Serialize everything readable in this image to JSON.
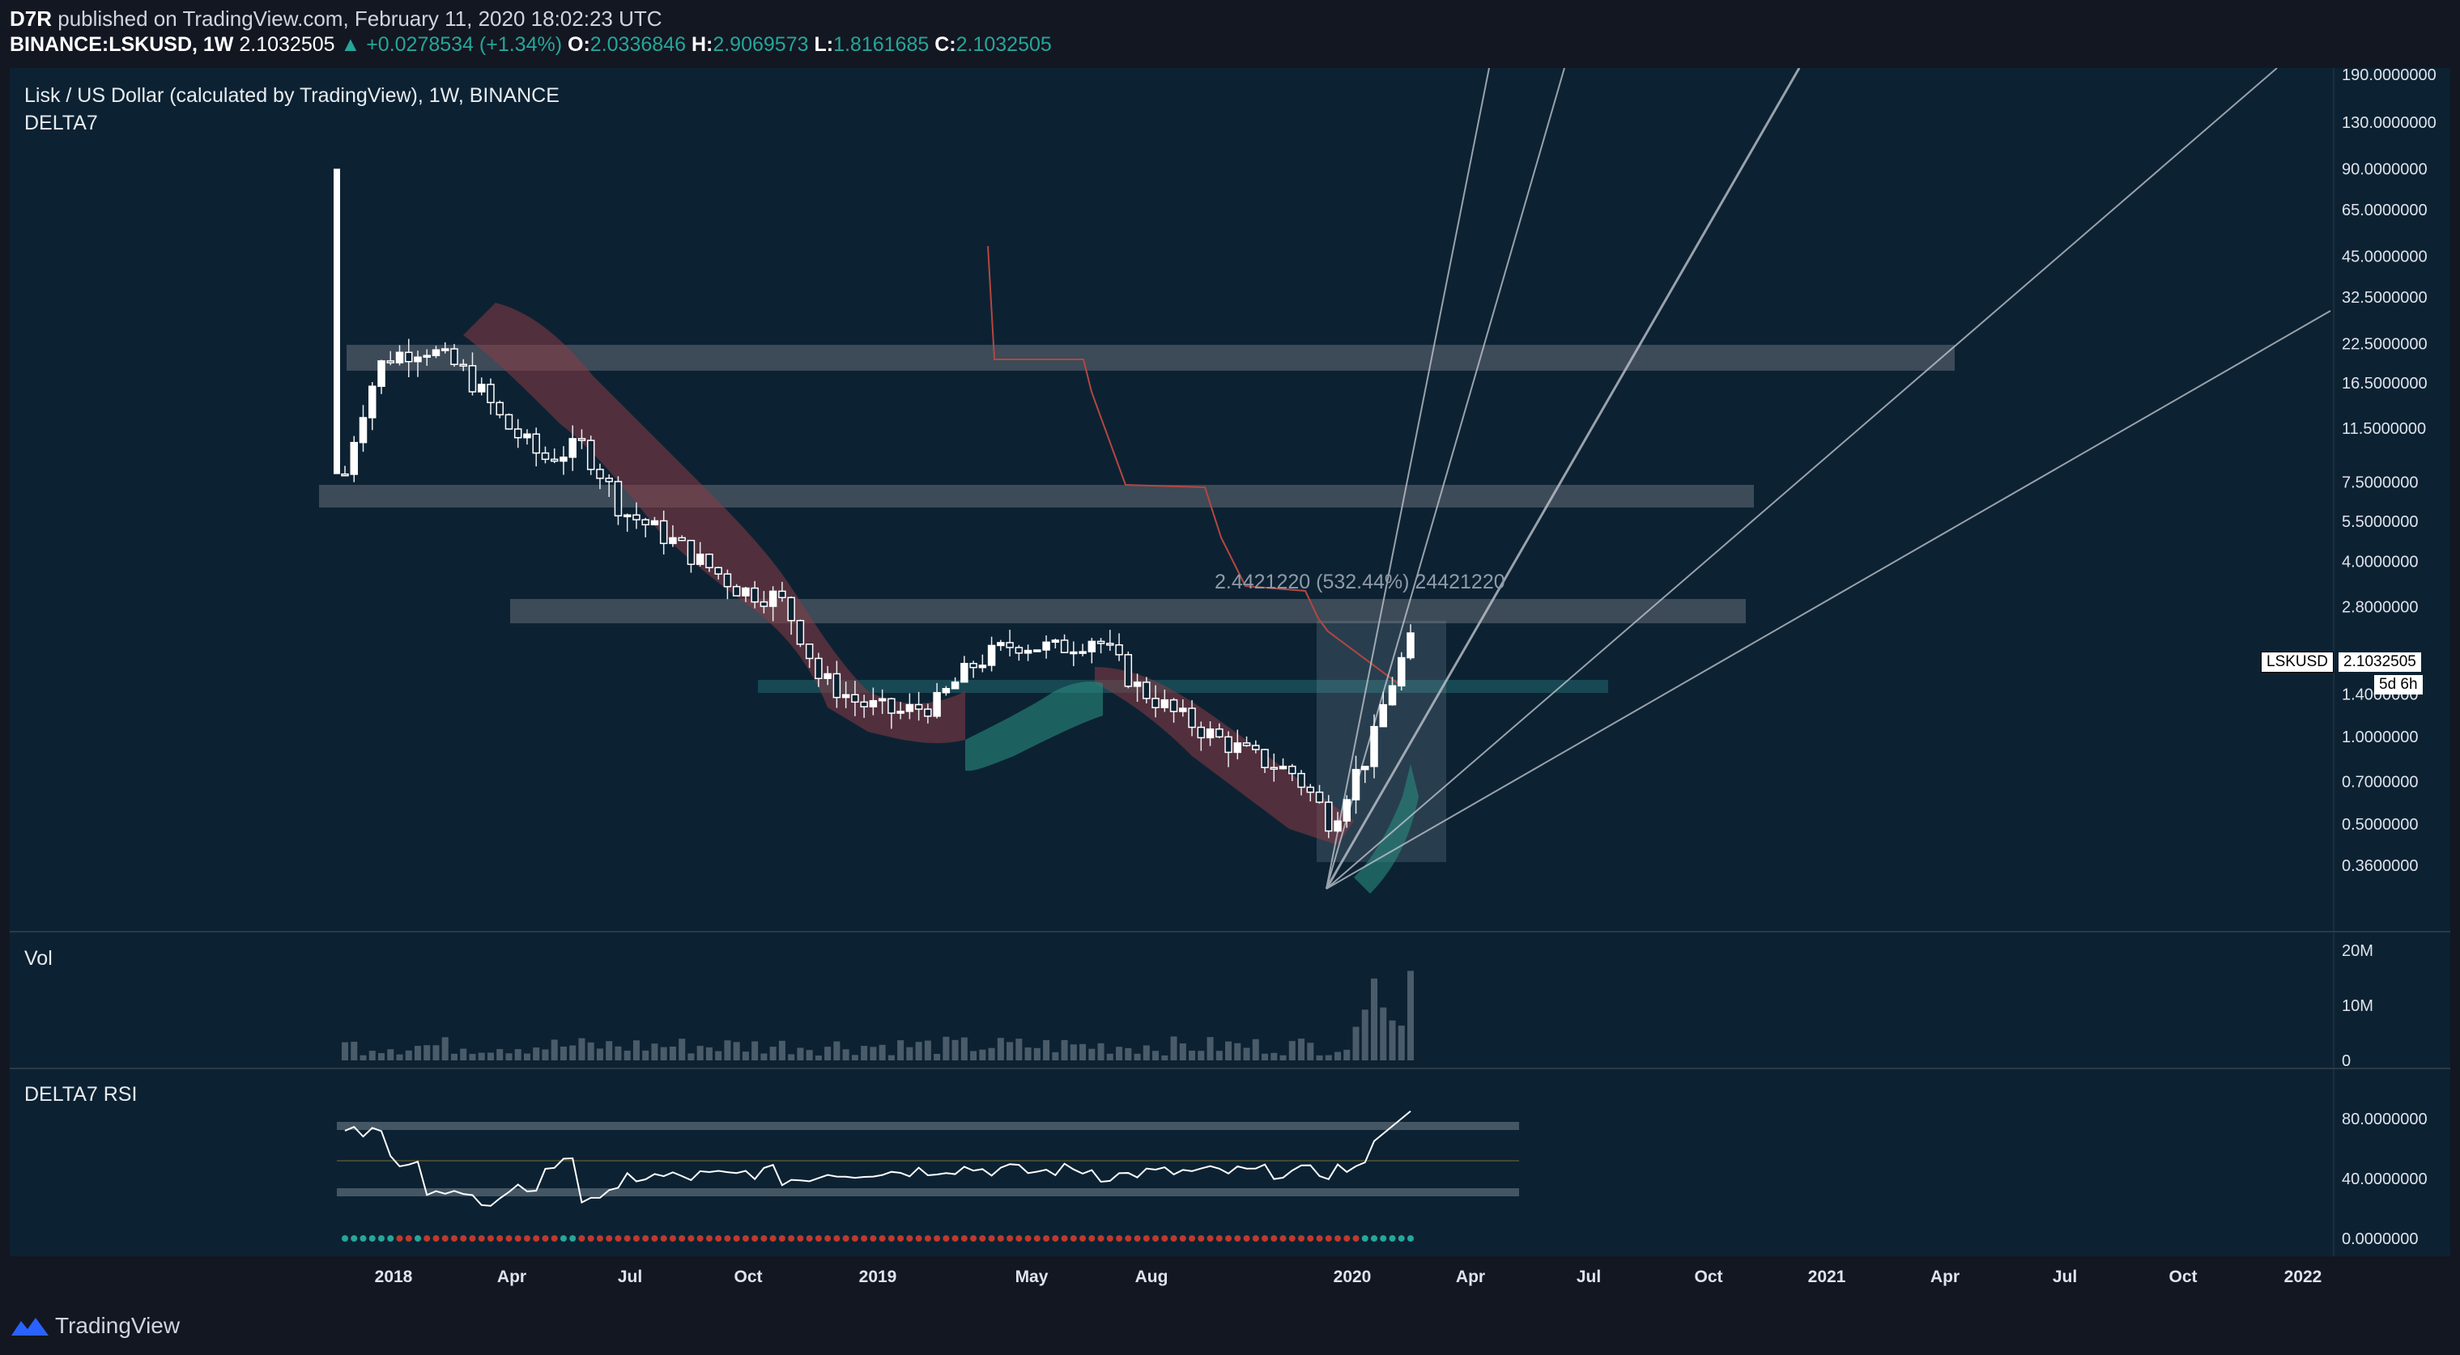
{
  "header": {
    "publisher": "D7R",
    "published_text": "published on TradingView.com, February 11, 2020 18:02:23 UTC",
    "symbol": "BINANCE:LSKUSD, 1W",
    "last": "2.1032505",
    "change": "▲ +0.0278534 (+1.34%)",
    "o_label": "O:",
    "o_value": "2.0336846",
    "h_label": "H:",
    "h_value": "2.9069573",
    "l_label": "L:",
    "l_value": "1.8161685",
    "c_label": "C:",
    "c_value": "2.1032505"
  },
  "main_pane": {
    "title": "Lisk / US Dollar (calculated by TradingView), 1W, BINANCE",
    "indicator": "DELTA7",
    "measure_label": "2.4421220 (532.44%) 24421220",
    "price_tag": "LSKUSD",
    "price_tag_value": "2.1032505",
    "countdown": "5d 6h"
  },
  "volume_pane": {
    "title": "Vol"
  },
  "rsi_pane": {
    "title": "DELTA7 RSI"
  },
  "footer": {
    "brand": "TradingView"
  },
  "colors": {
    "background": "#0c2233",
    "up": "#ffffff",
    "down": "#ffffff",
    "bear_cloud": "#8b3a44",
    "bull_cloud": "#2a8a7f",
    "zone": "#6b6f78",
    "fan_line": "#c8ccd4"
  },
  "chart_data": {
    "type": "candlestick",
    "scale": "log",
    "price_axis_labels": [
      "190.0000000",
      "130.0000000",
      "90.0000000",
      "65.0000000",
      "45.0000000",
      "32.5000000",
      "22.5000000",
      "16.5000000",
      "11.5000000",
      "7.5000000",
      "5.5000000",
      "4.0000000",
      "2.8000000",
      "1.4000000",
      "1.0000000",
      "0.7000000",
      "0.5000000",
      "0.3600000"
    ],
    "volume_axis_labels": [
      "20M",
      "10M",
      "0"
    ],
    "rsi_axis_labels": [
      "80.0000000",
      "40.0000000",
      "0.0000000"
    ],
    "time_axis_labels": [
      "2018",
      "Apr",
      "Jul",
      "Oct",
      "2019",
      "May",
      "Aug",
      "2020",
      "Apr",
      "Jul",
      "Oct",
      "2021",
      "Apr",
      "Jul",
      "Oct",
      "2022"
    ],
    "price_series": [
      {
        "date": "2017-11",
        "close": 8.0
      },
      {
        "date": "2017-12",
        "close": 20.0
      },
      {
        "date": "2018-01",
        "close": 22.0
      },
      {
        "date": "2018-02",
        "close": 18.0
      },
      {
        "date": "2018-03",
        "close": 12.0
      },
      {
        "date": "2018-04",
        "close": 9.0
      },
      {
        "date": "2018-05",
        "close": 10.0
      },
      {
        "date": "2018-06",
        "close": 6.0
      },
      {
        "date": "2018-07",
        "close": 5.0
      },
      {
        "date": "2018-08",
        "close": 4.0
      },
      {
        "date": "2018-09",
        "close": 3.2
      },
      {
        "date": "2018-10",
        "close": 3.0
      },
      {
        "date": "2018-11",
        "close": 1.6
      },
      {
        "date": "2018-12",
        "close": 1.3
      },
      {
        "date": "2019-01",
        "close": 1.2
      },
      {
        "date": "2019-02",
        "close": 1.3
      },
      {
        "date": "2019-03",
        "close": 1.8
      },
      {
        "date": "2019-04",
        "close": 2.1
      },
      {
        "date": "2019-05",
        "close": 2.0
      },
      {
        "date": "2019-06",
        "close": 2.2
      },
      {
        "date": "2019-07",
        "close": 1.5
      },
      {
        "date": "2019-08",
        "close": 1.2
      },
      {
        "date": "2019-09",
        "close": 1.0
      },
      {
        "date": "2019-10",
        "close": 0.85
      },
      {
        "date": "2019-11",
        "close": 0.75
      },
      {
        "date": "2019-12",
        "close": 0.5
      },
      {
        "date": "2020-01",
        "close": 0.9
      },
      {
        "date": "2020-02",
        "close": 2.1
      }
    ],
    "zones": [
      {
        "low": 20.5,
        "high": 24.0
      },
      {
        "low": 7.0,
        "high": 8.2
      },
      {
        "low": 2.9,
        "high": 3.4
      },
      {
        "low": 1.65,
        "high": 1.8
      }
    ],
    "volume_peak": "20M"
  }
}
